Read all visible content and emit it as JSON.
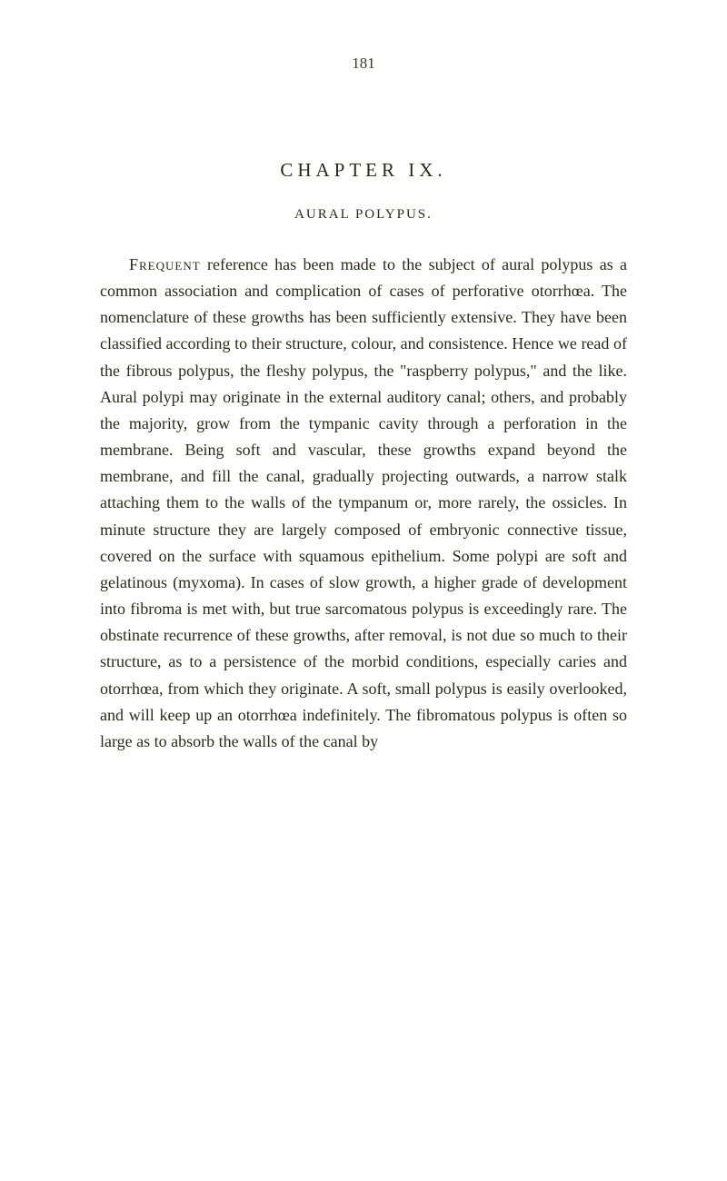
{
  "pageNumber": "181",
  "chapterTitle": "CHAPTER IX.",
  "sectionTitle": "AURAL POLYPUS.",
  "openingWord": "Frequent",
  "bodyText": " reference has been made to the subject of aural polypus as a common association and complication of cases of perforative otorrhœa. The nomenclature of these growths has been sufficiently extensive. They have been classified according to their structure, colour, and consistence. Hence we read of the fibrous polypus, the fleshy polypus, the \"raspberry polypus,\" and the like. Aural polypi may originate in the external auditory canal; others, and probably the majority, grow from the tympanic cavity through a perforation in the membrane. Being soft and vascular, these growths expand beyond the membrane, and fill the canal, gradually projecting outwards, a narrow stalk attaching them to the walls of the tympanum or, more rarely, the ossicles. In minute structure they are largely composed of embryonic connective tissue, covered on the surface with squamous epithelium. Some polypi are soft and gelatinous (myxoma). In cases of slow growth, a higher grade of development into fibroma is met with, but true sarcomatous polypus is exceedingly rare. The obstinate recurrence of these growths, after removal, is not due so much to their structure, as to a persistence of the morbid conditions, especially caries and otorrhœa, from which they originate. A soft, small polypus is easily overlooked, and will keep up an otorrhœa indefinitely. The fibromatous polypus is often so large as to absorb the walls of the canal by"
}
